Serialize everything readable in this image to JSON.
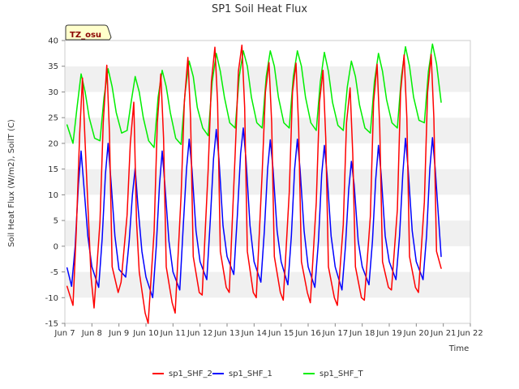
{
  "chart_data": {
    "type": "line",
    "title": "SP1 Soil Heat Flux",
    "xlabel": "Time",
    "ylabel": "Soil Heat Flux (W/m2), SoilT (C)",
    "badge": "TZ_osu",
    "xlim": [
      7,
      22
    ],
    "ylim": [
      -15,
      40
    ],
    "x_ticks": [
      {
        "value": 7,
        "label": "Jun 7"
      },
      {
        "value": 8,
        "label": "Jun 8"
      },
      {
        "value": 9,
        "label": "Jun 9"
      },
      {
        "value": 10,
        "label": "Jun 10"
      },
      {
        "value": 11,
        "label": "Jun 11"
      },
      {
        "value": 12,
        "label": "Jun 12"
      },
      {
        "value": 13,
        "label": "Jun 13"
      },
      {
        "value": 14,
        "label": "Jun 14"
      },
      {
        "value": 15,
        "label": "Jun 15"
      },
      {
        "value": 16,
        "label": "Jun 16"
      },
      {
        "value": 17,
        "label": "Jun 17"
      },
      {
        "value": 18,
        "label": "Jun 18"
      },
      {
        "value": 19,
        "label": "Jun 19"
      },
      {
        "value": 20,
        "label": "Jun 20"
      },
      {
        "value": 21,
        "label": "Jun 21"
      },
      {
        "value": 22,
        "label": "Jun 22"
      }
    ],
    "y_ticks": [
      -15,
      -10,
      -5,
      0,
      5,
      10,
      15,
      20,
      25,
      30,
      35,
      40
    ],
    "grid": "horizontal bands",
    "legend_position": "bottom-center",
    "series": [
      {
        "name": "sp1_SHF_2",
        "color": "#ff0000",
        "x": [
          7.08,
          7.3,
          7.42,
          7.55,
          7.65,
          7.75,
          7.97,
          8.08,
          8.3,
          8.42,
          8.55,
          8.65,
          8.75,
          8.97,
          9.08,
          9.3,
          9.42,
          9.55,
          9.65,
          9.75,
          9.97,
          10.08,
          10.3,
          10.42,
          10.55,
          10.65,
          10.75,
          10.97,
          11.08,
          11.3,
          11.42,
          11.55,
          11.65,
          11.75,
          11.97,
          12.08,
          12.3,
          12.42,
          12.55,
          12.65,
          12.75,
          12.97,
          13.08,
          13.3,
          13.42,
          13.55,
          13.65,
          13.75,
          13.97,
          14.08,
          14.3,
          14.42,
          14.55,
          14.65,
          14.75,
          14.97,
          15.08,
          15.3,
          15.42,
          15.55,
          15.65,
          15.75,
          15.97,
          16.08,
          16.3,
          16.42,
          16.55,
          16.65,
          16.75,
          16.97,
          17.08,
          17.3,
          17.42,
          17.55,
          17.65,
          17.75,
          17.97,
          18.08,
          18.3,
          18.42,
          18.55,
          18.65,
          18.75,
          18.97,
          19.08,
          19.3,
          19.42,
          19.55,
          19.65,
          19.75,
          19.97,
          20.08,
          20.3,
          20.42,
          20.55,
          20.65,
          20.75,
          20.92
        ],
        "y": [
          -7.8,
          -11.5,
          2.7,
          22.0,
          32.7,
          20.0,
          -6.0,
          -12.0,
          4.8,
          24.0,
          35.2,
          22.0,
          -4.0,
          -9.0,
          -7.0,
          6.0,
          20.0,
          28.0,
          5.0,
          -5.0,
          -13.0,
          -15.0,
          2.8,
          24.0,
          33.5,
          21.0,
          -4.0,
          -11.0,
          -13.0,
          9.8,
          28.0,
          36.7,
          25.0,
          -2.0,
          -9.0,
          -9.5,
          14.9,
          32.0,
          38.7,
          28.0,
          -1.0,
          -8.0,
          -9.0,
          18.0,
          34.0,
          39.1,
          27.0,
          -1.0,
          -9.0,
          -10.0,
          14.3,
          30.0,
          35.7,
          24.0,
          -2.0,
          -9.0,
          -10.5,
          10.5,
          30.0,
          35.6,
          23.0,
          -3.0,
          -9.0,
          -11.0,
          8.5,
          28.0,
          34.2,
          21.0,
          -4.0,
          -10.0,
          -11.5,
          4.2,
          24.0,
          30.8,
          18.0,
          -4.0,
          -10.0,
          -10.5,
          5.8,
          28.0,
          35.4,
          23.0,
          -3.0,
          -8.0,
          -8.5,
          7.1,
          30.0,
          37.2,
          25.0,
          -2.0,
          -8.0,
          -9.0,
          8.6,
          30.0,
          37.3,
          25.0,
          -1.0,
          -4.3
        ]
      },
      {
        "name": "sp1_SHF_1",
        "color": "#0000ff",
        "x": [
          7.08,
          7.25,
          7.38,
          7.5,
          7.6,
          7.7,
          7.85,
          8.0,
          8.25,
          8.38,
          8.5,
          8.6,
          8.7,
          8.85,
          9.0,
          9.25,
          9.38,
          9.5,
          9.6,
          9.7,
          9.85,
          10.0,
          10.25,
          10.38,
          10.5,
          10.6,
          10.7,
          10.85,
          11.0,
          11.25,
          11.38,
          11.5,
          11.6,
          11.7,
          11.85,
          12.0,
          12.25,
          12.38,
          12.5,
          12.6,
          12.7,
          12.85,
          13.0,
          13.25,
          13.38,
          13.5,
          13.6,
          13.7,
          13.85,
          14.0,
          14.25,
          14.38,
          14.5,
          14.6,
          14.7,
          14.85,
          15.0,
          15.25,
          15.38,
          15.5,
          15.6,
          15.7,
          15.85,
          16.0,
          16.25,
          16.38,
          16.5,
          16.6,
          16.7,
          16.85,
          17.0,
          17.25,
          17.38,
          17.5,
          17.6,
          17.7,
          17.85,
          18.0,
          18.25,
          18.38,
          18.5,
          18.6,
          18.7,
          18.85,
          19.0,
          19.25,
          19.38,
          19.5,
          19.6,
          19.7,
          19.85,
          20.0,
          20.25,
          20.38,
          20.5,
          20.6,
          20.7,
          20.92
        ],
        "y": [
          -4.2,
          -7.8,
          0.0,
          12.0,
          18.5,
          12.0,
          2.0,
          -4.0,
          -8.0,
          1.5,
          14.0,
          20.0,
          13.0,
          2.0,
          -4.5,
          -6.0,
          1.0,
          10.0,
          15.2,
          8.0,
          -1.0,
          -6.0,
          -10.0,
          0.0,
          12.0,
          18.5,
          12.0,
          1.0,
          -5.0,
          -8.5,
          4.0,
          15.0,
          20.8,
          15.0,
          3.0,
          -3.0,
          -6.5,
          5.0,
          17.0,
          22.7,
          17.0,
          4.0,
          -2.0,
          -5.5,
          6.0,
          18.0,
          23.0,
          17.0,
          4.0,
          -3.0,
          -7.0,
          3.0,
          15.0,
          20.7,
          15.0,
          3.0,
          -3.0,
          -7.5,
          2.0,
          15.0,
          20.8,
          15.0,
          3.0,
          -4.0,
          -8.0,
          1.0,
          14.0,
          19.6,
          14.0,
          2.0,
          -4.0,
          -8.5,
          0.0,
          11.0,
          16.5,
          12.0,
          1.0,
          -4.0,
          -7.5,
          1.0,
          13.0,
          19.6,
          14.0,
          2.0,
          -3.0,
          -6.5,
          2.0,
          14.0,
          21.0,
          15.0,
          3.0,
          -3.0,
          -6.5,
          2.0,
          15.0,
          21.1,
          15.0,
          -2.0
        ]
      },
      {
        "name": "sp1_SHF_T",
        "color": "#00ee00",
        "x": [
          7.08,
          7.3,
          7.45,
          7.6,
          7.75,
          7.9,
          8.1,
          8.3,
          8.45,
          8.6,
          8.75,
          8.9,
          9.1,
          9.3,
          9.45,
          9.6,
          9.75,
          9.9,
          10.1,
          10.3,
          10.45,
          10.6,
          10.75,
          10.9,
          11.1,
          11.3,
          11.45,
          11.6,
          11.75,
          11.9,
          12.1,
          12.3,
          12.45,
          12.6,
          12.75,
          12.9,
          13.1,
          13.3,
          13.45,
          13.6,
          13.75,
          13.9,
          14.1,
          14.3,
          14.45,
          14.6,
          14.75,
          14.9,
          15.1,
          15.3,
          15.45,
          15.6,
          15.75,
          15.9,
          16.1,
          16.3,
          16.45,
          16.6,
          16.75,
          16.9,
          17.1,
          17.3,
          17.45,
          17.6,
          17.75,
          17.9,
          18.1,
          18.3,
          18.45,
          18.6,
          18.75,
          18.9,
          19.1,
          19.3,
          19.45,
          19.6,
          19.75,
          19.9,
          20.1,
          20.3,
          20.45,
          20.6,
          20.75,
          20.92
        ],
        "y": [
          23.6,
          20.0,
          27.0,
          33.5,
          30.0,
          25.0,
          21.0,
          20.5,
          29.0,
          34.5,
          31.0,
          26.0,
          22.0,
          22.5,
          28.0,
          33.0,
          30.0,
          25.0,
          20.5,
          19.2,
          29.0,
          34.2,
          31.0,
          26.0,
          21.0,
          19.8,
          30.0,
          36.0,
          33.0,
          27.0,
          23.0,
          21.5,
          32.0,
          37.5,
          34.0,
          29.0,
          24.0,
          23.0,
          33.0,
          38.0,
          35.0,
          29.0,
          24.0,
          23.0,
          33.0,
          38.0,
          35.0,
          29.0,
          24.0,
          23.0,
          33.0,
          38.0,
          35.0,
          29.0,
          24.0,
          22.5,
          32.0,
          37.7,
          34.0,
          28.0,
          23.5,
          22.5,
          31.0,
          36.0,
          33.0,
          27.5,
          23.0,
          22.0,
          32.0,
          37.5,
          34.0,
          28.5,
          24.0,
          23.0,
          33.0,
          38.8,
          35.0,
          29.0,
          24.5,
          24.0,
          34.0,
          39.3,
          35.5,
          28.0
        ]
      }
    ]
  }
}
